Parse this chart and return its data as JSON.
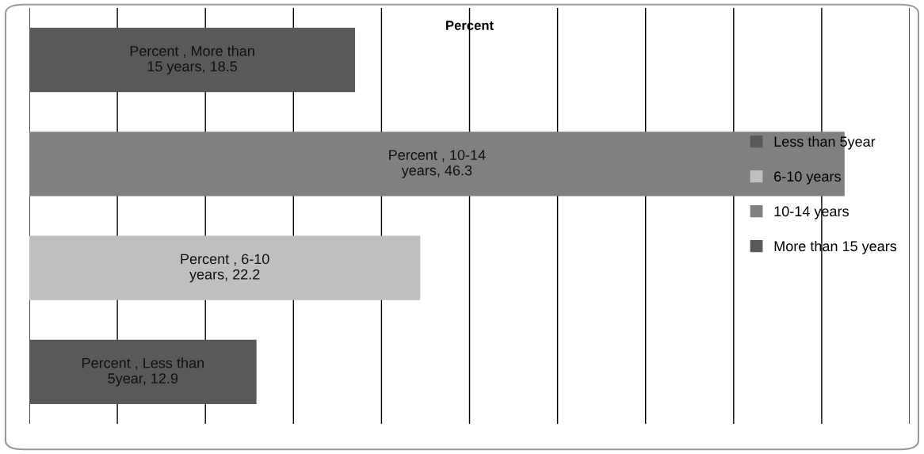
{
  "chart_data": {
    "type": "bar",
    "orientation": "horizontal",
    "stacked": true,
    "title": "Percent",
    "categories": [
      null,
      null,
      null,
      null
    ],
    "series": [
      {
        "name": "Less than 5year",
        "color": "#595959",
        "values": [
          null,
          null,
          null,
          12.9
        ],
        "value_labels": [
          null,
          null,
          null,
          "Percent , Less than\n5year, 12.9"
        ]
      },
      {
        "name": "6-10 years",
        "color": "#bfbfbf",
        "values": [
          null,
          null,
          22.2,
          null
        ],
        "value_labels": [
          null,
          null,
          "Percent , 6-10\nyears, 22.2",
          null
        ]
      },
      {
        "name": "10-14 years",
        "color": "#808080",
        "values": [
          null,
          46.3,
          null,
          null
        ],
        "value_labels": [
          null,
          "Percent , 10-14\nyears, 46.3",
          null,
          null
        ]
      },
      {
        "name": "More than 15 years",
        "color": "#595959",
        "values": [
          18.5,
          null,
          null,
          null
        ],
        "value_labels": [
          "Percent , More than\n15 years, 18.5",
          null,
          null,
          null
        ]
      }
    ],
    "xlim": [
      0,
      50
    ],
    "xticks": [
      0,
      5,
      10,
      15,
      20,
      25,
      30,
      35,
      40,
      45,
      50
    ],
    "tick_labels": false,
    "grid": "x",
    "legend": "right"
  }
}
